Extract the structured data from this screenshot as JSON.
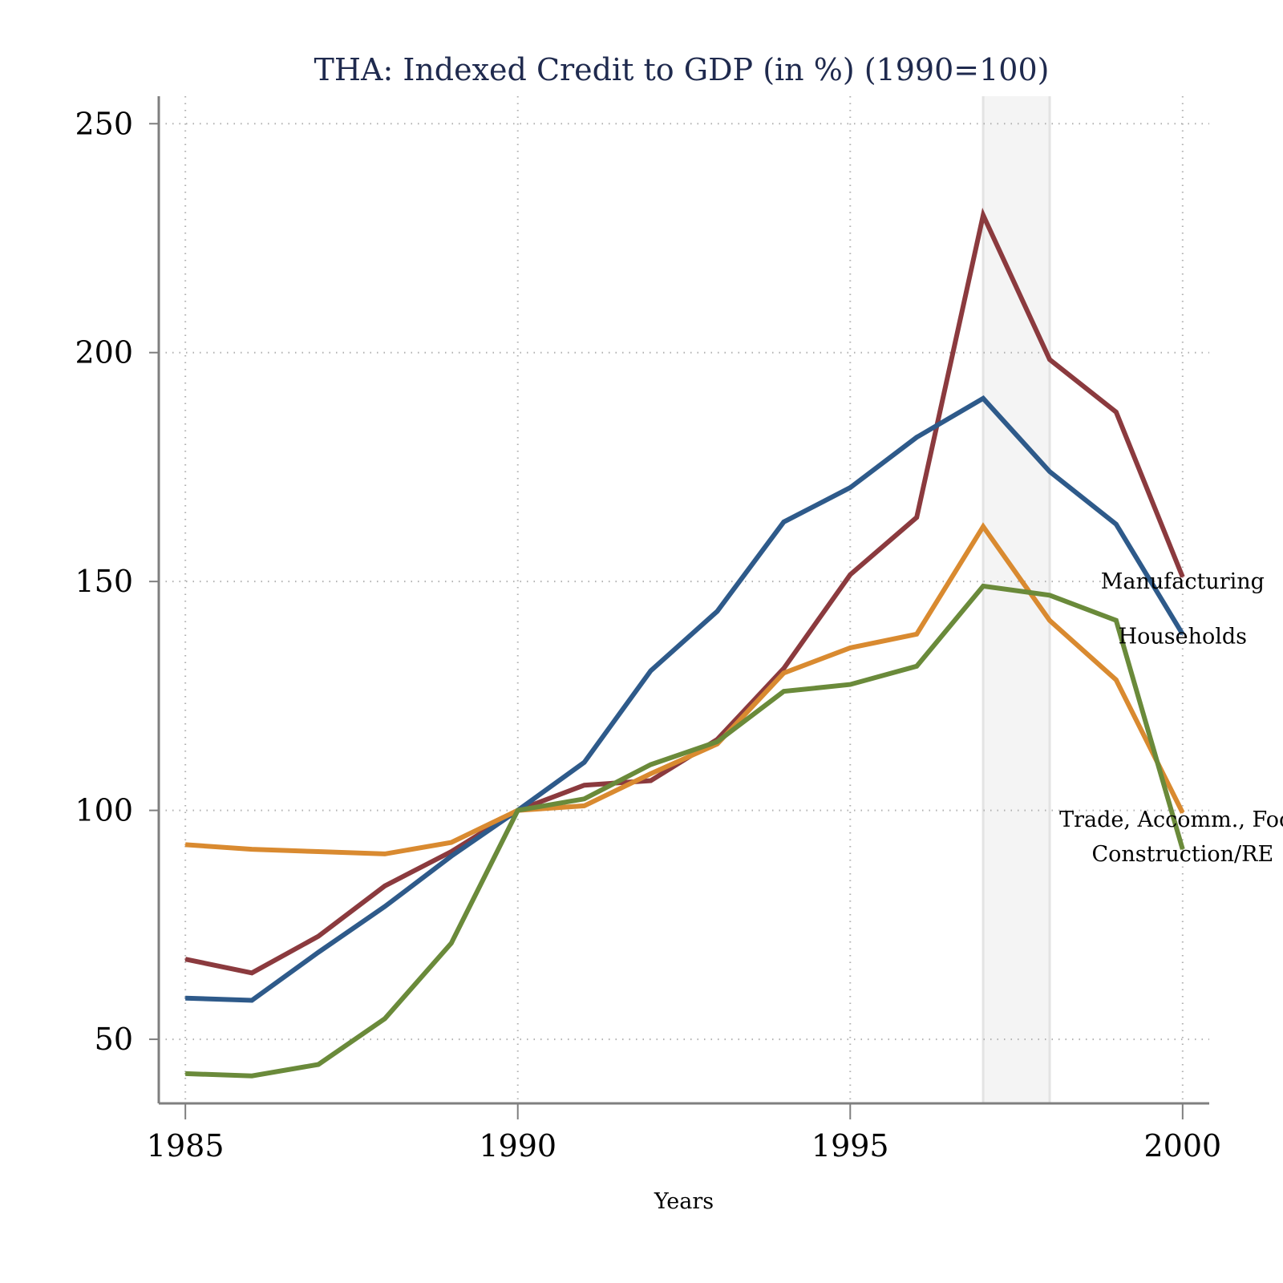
{
  "chart_data": {
    "type": "line",
    "title": "THA: Indexed Credit to GDP (in %) (1990=100)",
    "xlabel": "Years",
    "ylabel": "",
    "x": [
      1985,
      1986,
      1987,
      1988,
      1989,
      1990,
      1991,
      1992,
      1993,
      1994,
      1995,
      1996,
      1997,
      1998,
      1999,
      2000
    ],
    "xlim": [
      1984.6,
      2000.4
    ],
    "ylim": [
      36,
      256
    ],
    "xticks": [
      1985,
      1990,
      1995,
      2000
    ],
    "yticks": [
      50,
      100,
      150,
      200,
      250
    ],
    "x_tick_labels": [
      "1985",
      "1990",
      "1995",
      "2000"
    ],
    "y_tick_labels": [
      "50",
      "100",
      "150",
      "200",
      "250"
    ],
    "grid": true,
    "shaded_period": [
      1997,
      1998
    ],
    "series": [
      {
        "name": "Manufacturing",
        "color": "#8b3a3e",
        "values": [
          67.5,
          64.5,
          72.5,
          83.5,
          91,
          100,
          105.5,
          106.5,
          115.5,
          131,
          151.5,
          164,
          230,
          198.5,
          187,
          151
        ]
      },
      {
        "name": "Households",
        "color": "#2e5a8a",
        "values": [
          59,
          58.5,
          69,
          79,
          90,
          100,
          110.5,
          130.5,
          143.5,
          163,
          170.5,
          181.5,
          190,
          174,
          162.5,
          138.5
        ]
      },
      {
        "name": "Trade, Accomm., Food",
        "color": "#d98a30",
        "values": [
          92.5,
          91.5,
          91,
          90.5,
          93,
          100,
          101,
          108,
          114.5,
          130,
          135.5,
          138.5,
          162,
          141.5,
          128.5,
          99.5
        ]
      },
      {
        "name": "Construction/RE",
        "color": "#6a8a3a",
        "values": [
          42.5,
          42,
          44.5,
          54.5,
          71,
          100,
          102.5,
          110,
          115,
          126,
          127.5,
          131.5,
          149,
          147,
          141.5,
          91.5
        ]
      }
    ],
    "line_labels": [
      {
        "text": "Manufacturing",
        "x": 2000,
        "y": 150
      },
      {
        "text": "Households",
        "x": 2000,
        "y": 138
      },
      {
        "text": "Trade, Accomm., Food",
        "x": 2000,
        "y": 98
      },
      {
        "text": "Construction/RE",
        "x": 2000,
        "y": 90.5
      }
    ]
  },
  "colors": {
    "title": "#1f2a4e",
    "axis": "#7f7f7f",
    "grid": "#b0b0b0",
    "shade": "#f4f4f4",
    "shade_border": "#e3e3e3"
  }
}
